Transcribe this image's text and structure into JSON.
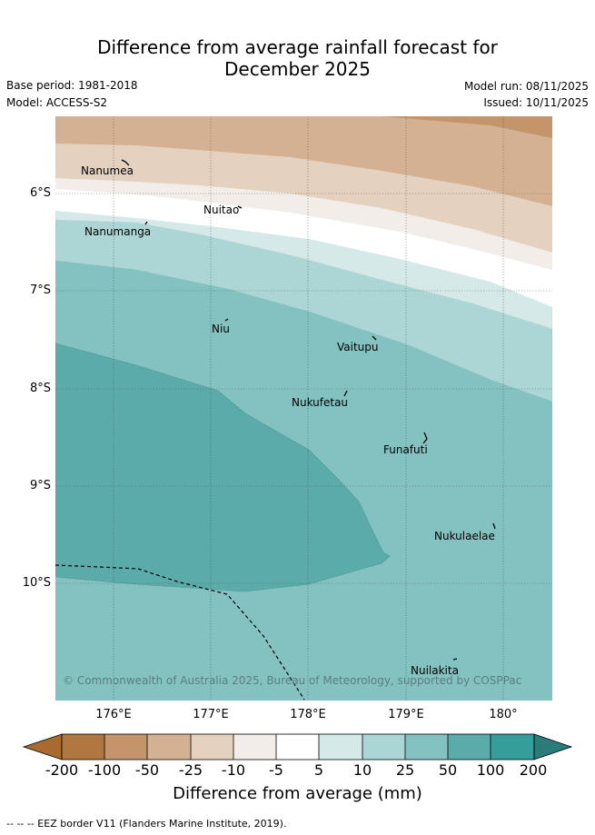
{
  "title_line1": "Difference from average rainfall forecast for",
  "title_line2": "December 2025",
  "base_period": "Base period: 1981-2018",
  "model": "Model: ACCESS-S2",
  "model_run": "Model run: 08/11/2025",
  "issued": "Issued: 10/11/2025",
  "map": {
    "lat_labels": [
      "6°S",
      "7°S",
      "8°S",
      "9°S",
      "10°S"
    ],
    "lon_labels": [
      "176°E",
      "177°E",
      "178°E",
      "179°E",
      "180°"
    ],
    "places": {
      "nanumea": "Nanumea",
      "nuitao": "Nuitao",
      "nanumanga": "Nanumanga",
      "niu": "Niu",
      "vaitupu": "Vaitupu",
      "nukufetau": "Nukufetau",
      "funafuti": "Funafuti",
      "nukulaelae": "Nukulaelae",
      "nuilakita": "Nuilakita"
    },
    "copyright": "© Commonwealth of Australia 2025, Bureau of Meteorology, supported by COSPPac"
  },
  "colorbar": {
    "ticks": [
      "-200",
      "-100",
      "-50",
      "-25",
      "-10",
      "-5",
      "5",
      "10",
      "25",
      "50",
      "100",
      "200"
    ],
    "colors": [
      "#a86a2f",
      "#b07840",
      "#c4956a",
      "#d4b193",
      "#e5d1bf",
      "#f2ede8",
      "#ffffff",
      "#d5e9e8",
      "#acd6d5",
      "#83c2c0",
      "#5aabaa",
      "#359e9b",
      "#2a7b7a"
    ],
    "title": "Difference from average (mm)"
  },
  "footnote": "-- -- -- EEZ border V11 (Flanders Marine Institute, 2019)."
}
